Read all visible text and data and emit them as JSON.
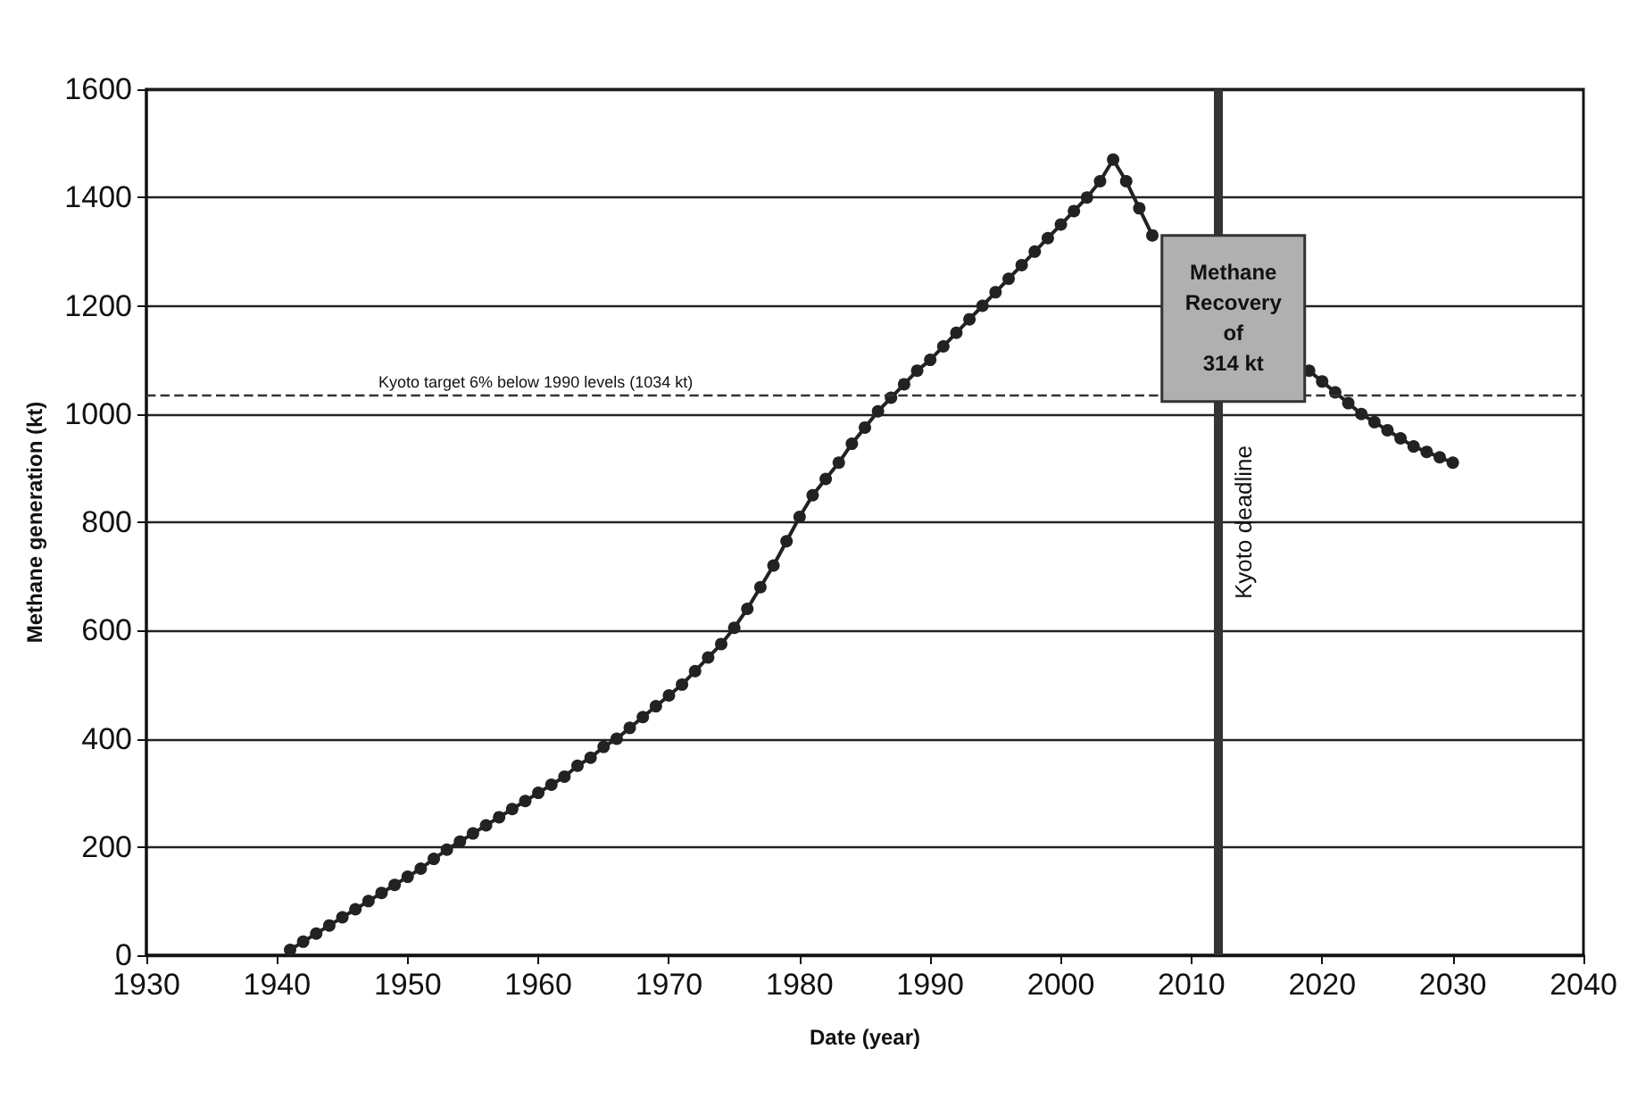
{
  "chart_data": {
    "type": "line",
    "xlabel": "Date (year)",
    "ylabel": "Methane generation (kt)",
    "x": [
      1941,
      1942,
      1943,
      1944,
      1945,
      1946,
      1947,
      1948,
      1949,
      1950,
      1951,
      1952,
      1953,
      1954,
      1955,
      1956,
      1957,
      1958,
      1959,
      1960,
      1961,
      1962,
      1963,
      1964,
      1965,
      1966,
      1967,
      1968,
      1969,
      1970,
      1971,
      1972,
      1973,
      1974,
      1975,
      1976,
      1977,
      1978,
      1979,
      1980,
      1981,
      1982,
      1983,
      1984,
      1985,
      1986,
      1987,
      1988,
      1989,
      1990,
      1991,
      1992,
      1993,
      1994,
      1995,
      1996,
      1997,
      1998,
      1999,
      2000,
      2001,
      2002,
      2003,
      2004,
      2005,
      2006,
      2007,
      2008,
      2009,
      2010,
      2011,
      2012,
      2013,
      2014,
      2015,
      2016,
      2017,
      2018,
      2019,
      2020,
      2021,
      2022,
      2023,
      2024,
      2025,
      2026,
      2027,
      2028,
      2029,
      2030
    ],
    "series": [
      {
        "color": "#222222",
        "values": [
          10,
          25,
          40,
          55,
          70,
          85,
          100,
          115,
          130,
          145,
          160,
          178,
          195,
          210,
          225,
          240,
          255,
          270,
          285,
          300,
          315,
          330,
          350,
          365,
          385,
          400,
          420,
          440,
          460,
          480,
          500,
          525,
          550,
          575,
          605,
          640,
          680,
          720,
          765,
          810,
          850,
          880,
          910,
          945,
          975,
          1005,
          1030,
          1055,
          1080,
          1100,
          1125,
          1150,
          1175,
          1200,
          1225,
          1250,
          1275,
          1300,
          1325,
          1350,
          1375,
          1400,
          1430,
          1470,
          1430,
          1380,
          1330,
          null,
          null,
          null,
          null,
          null,
          null,
          null,
          null,
          null,
          null,
          null,
          1080,
          1060,
          1040,
          1020,
          1000,
          985,
          970,
          955,
          940,
          930,
          920,
          910
        ]
      }
    ],
    "xlim": [
      1930,
      2040
    ],
    "xticks": [
      1930,
      1940,
      1950,
      1960,
      1970,
      1980,
      1990,
      2000,
      2010,
      2020,
      2030,
      2040
    ],
    "ylim": [
      0,
      1600
    ],
    "yticks": [
      0,
      200,
      400,
      600,
      800,
      1000,
      1200,
      1400,
      1600
    ],
    "ref_lines": [
      {
        "axis": "y",
        "value": 1034,
        "label": "Kyoto target 6% below 1990 levels (1034 kt)",
        "color": "#333333",
        "line_style": "dashed"
      },
      {
        "axis": "x",
        "value": 2012,
        "label": "Kyoto deadline",
        "color": "#333333",
        "line_style": "solid"
      }
    ],
    "annotations": [
      "Methane Recovery of 314 kt"
    ],
    "grid": "y",
    "marker": "circle",
    "line_style": "solid"
  }
}
